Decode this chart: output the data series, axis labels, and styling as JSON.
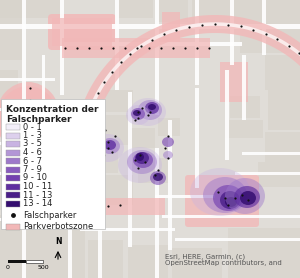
{
  "legend_title": "Konzentration der\nFalschparker",
  "legend_items": [
    {
      "label": "0 - 1",
      "color": "#f2eef8"
    },
    {
      "label": "1 - 3",
      "color": "#ddd0ed"
    },
    {
      "label": "3 - 5",
      "color": "#c8b3e2"
    },
    {
      "label": "4 - 6",
      "color": "#b396d6"
    },
    {
      "label": "6 - 7",
      "color": "#9e79ca"
    },
    {
      "label": "7 - 9",
      "color": "#895cbe"
    },
    {
      "label": "9 - 10",
      "color": "#7440b0"
    },
    {
      "label": "10 - 11",
      "color": "#5f2ea0"
    },
    {
      "label": "11 - 13",
      "color": "#4a1e88"
    },
    {
      "label": "13 - 14",
      "color": "#350e70"
    }
  ],
  "extra_items": [
    {
      "label": "Falschparker",
      "color": "#111111"
    },
    {
      "label": "Parkverbotszone",
      "patch_color": "#f2b8b8"
    }
  ],
  "attribution": "Esri, HERE, Garmin, (c)\nOpenStreetMap contributors, and",
  "bg_color": "#e0ddd8",
  "map_bg": "#edeae4",
  "block_color": "#d8d4cc",
  "road_color": "#ffffff",
  "parkzone_color": "#f2b8b8",
  "legend_box_bg": "#ffffff",
  "legend_fontsize": 6.0,
  "legend_title_fontsize": 6.5,
  "attribution_fontsize": 5.0
}
